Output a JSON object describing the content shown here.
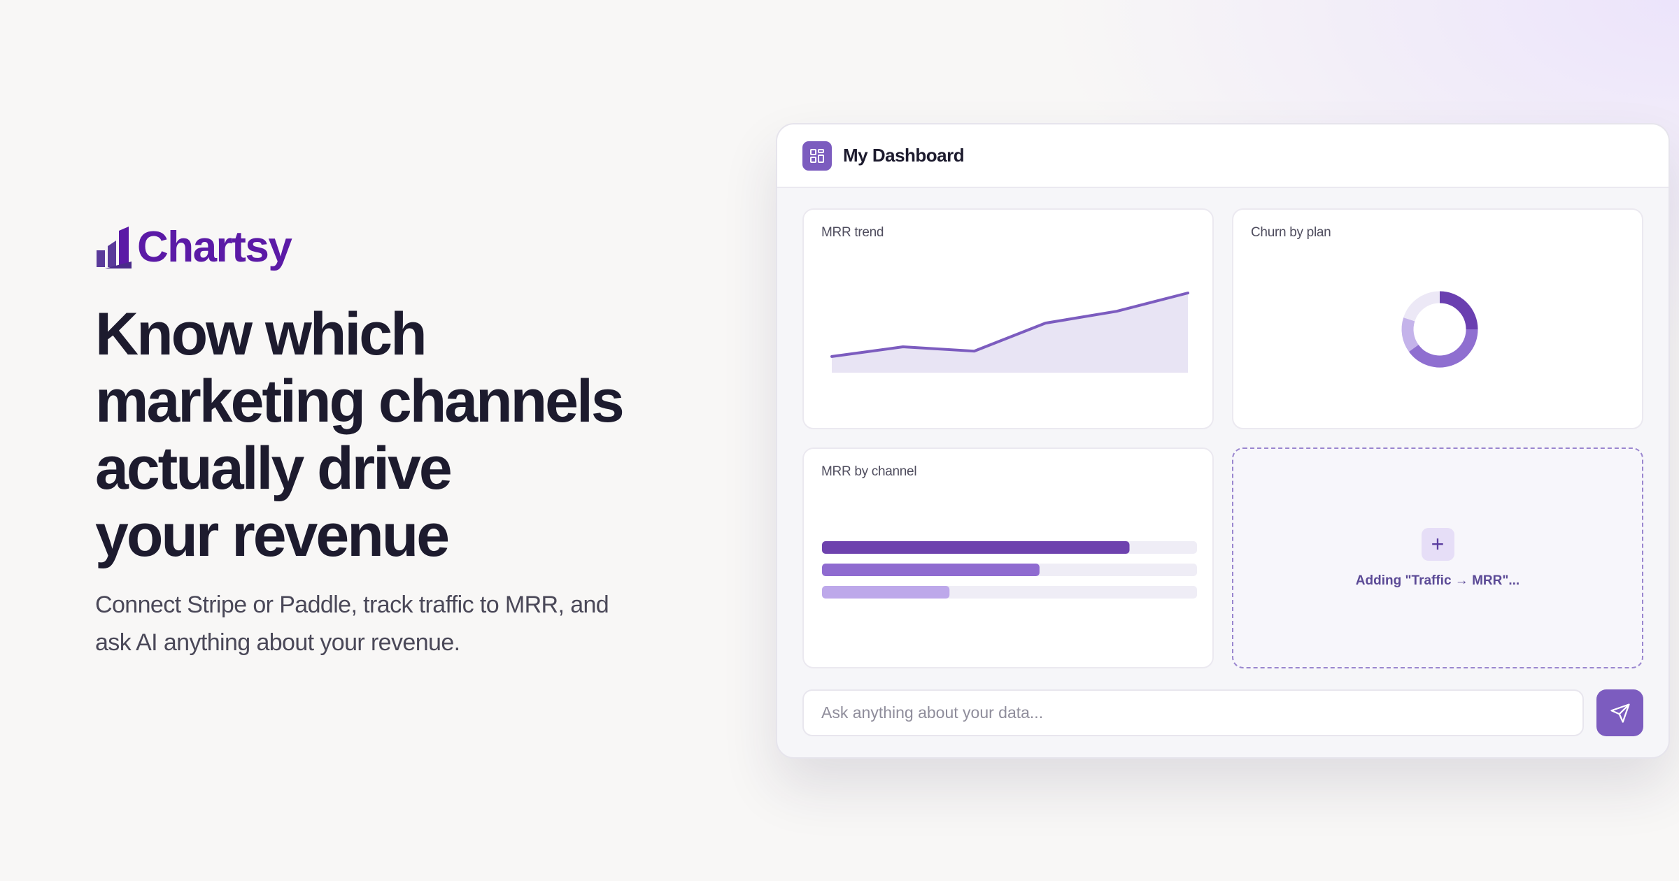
{
  "brand": "Chartsy",
  "headline": [
    "Know which",
    "marketing channels",
    "actually drive",
    "your revenue"
  ],
  "subtitle": [
    "Connect Stripe or Paddle, track traffic to MRR, and",
    "ask AI anything about your revenue."
  ],
  "dashboard": {
    "title": "My Dashboard",
    "mrr_trend": {
      "type": "area",
      "title": "MRR trend",
      "values": [
        15,
        24,
        20,
        46,
        57,
        74
      ],
      "color": "#7c5cbf",
      "fill": "#e8e4f4"
    },
    "churn_by_plan": {
      "type": "donut",
      "title": "Churn by plan",
      "values": [
        25,
        40,
        15,
        20
      ],
      "colors": [
        "#6a3fb0",
        "#8f6fd0",
        "#c4b3ea",
        "#ece8f6"
      ]
    },
    "mrr_by_channel": {
      "type": "bar",
      "title": "MRR by channel",
      "values": [
        82,
        58,
        34
      ],
      "xlim": [
        0,
        100
      ],
      "colors": [
        "#6e42ae",
        "#8f6bd0",
        "#bda8ea"
      ],
      "track": "#efedf6"
    },
    "adding_label": "Adding \"Traffic → MRR\"...",
    "input_placeholder": "Ask anything about your data..."
  }
}
